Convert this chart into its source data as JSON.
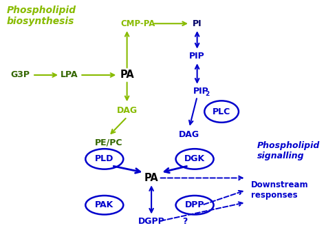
{
  "bg_color": "#ffffff",
  "green_color": "#88bb00",
  "dark_green": "#336600",
  "blue_color": "#0000cc",
  "black_color": "#000000",
  "title_biosynthesis": "Phospholipid\nbiosynthesis",
  "title_signalling": "Phospholipid\nsignalling",
  "title_downstream": "Downstream\nresponses"
}
